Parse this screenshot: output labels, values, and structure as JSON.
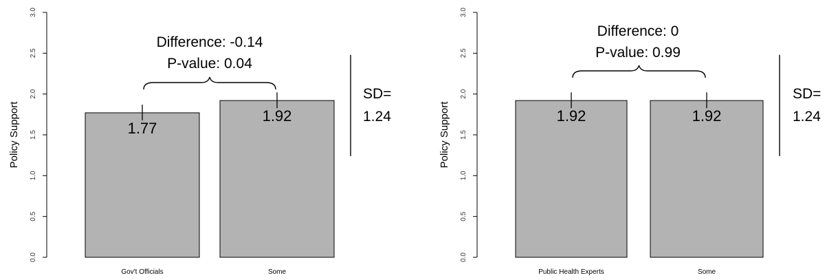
{
  "chart_data": [
    {
      "type": "bar",
      "ylabel": "Policy Support",
      "ylim": [
        0,
        3
      ],
      "yticks": [
        "0.0",
        "0.5",
        "1.0",
        "1.5",
        "2.0",
        "2.5",
        "3.0"
      ],
      "categories": [
        "Gov't Officials",
        "Some"
      ],
      "values": [
        1.77,
        1.92
      ],
      "value_labels": [
        "1.77",
        "1.92"
      ],
      "error_upper": [
        1.87,
        2.02
      ],
      "annotation": {
        "line1": "Difference: -0.14",
        "line2": "P-value: 0.04"
      },
      "sd": {
        "label": "SD=",
        "value": "1.24",
        "range": [
          1.24,
          2.48
        ]
      }
    },
    {
      "type": "bar",
      "ylabel": "Policy Support",
      "ylim": [
        0,
        3
      ],
      "yticks": [
        "0.0",
        "0.5",
        "1.0",
        "1.5",
        "2.0",
        "2.5",
        "3.0"
      ],
      "categories": [
        "Public Health Experts",
        "Some"
      ],
      "values": [
        1.92,
        1.92
      ],
      "value_labels": [
        "1.92",
        "1.92"
      ],
      "error_upper": [
        2.02,
        2.02
      ],
      "annotation": {
        "line1": "Difference: 0",
        "line2": "P-value: 0.99"
      },
      "sd": {
        "label": "SD=",
        "value": "1.24",
        "range": [
          1.24,
          2.48
        ]
      }
    }
  ]
}
